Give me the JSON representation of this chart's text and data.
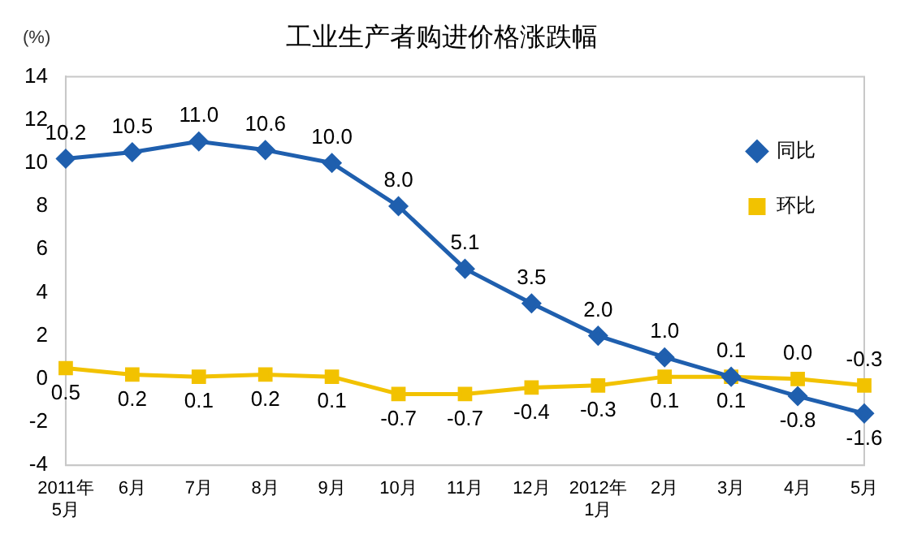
{
  "chart_data": {
    "type": "line",
    "title": "工业生产者购进价格涨跌幅",
    "ylabel": "(%)",
    "categories": [
      "2011年\n5月",
      "6月",
      "7月",
      "8月",
      "9月",
      "10月",
      "11月",
      "12月",
      "2012年\n1月",
      "2月",
      "3月",
      "4月",
      "5月"
    ],
    "series": [
      {
        "name": "同比",
        "color": "#1f5fae",
        "marker": "diamond",
        "values": [
          10.2,
          10.5,
          11.0,
          10.6,
          10.0,
          8.0,
          5.1,
          3.5,
          2.0,
          1.0,
          0.1,
          -0.8,
          -1.6
        ],
        "value_labels": [
          "10.2",
          "10.5",
          "11.0",
          "10.6",
          "10.0",
          "8.0",
          "5.1",
          "3.5",
          "2.0",
          "1.0",
          "0.1",
          "-0.8",
          "-1.6"
        ]
      },
      {
        "name": "环比",
        "color": "#f2c200",
        "marker": "square",
        "values": [
          0.5,
          0.2,
          0.1,
          0.2,
          0.1,
          -0.7,
          -0.7,
          -0.4,
          -0.3,
          0.1,
          0.1,
          0.0,
          -0.3
        ],
        "value_labels": [
          "0.5",
          "0.2",
          "0.1",
          "0.2",
          "0.1",
          "-0.7",
          "-0.7",
          "-0.4",
          "-0.3",
          "0.1",
          "0.1",
          "0.0",
          "-0.3"
        ]
      }
    ],
    "ylim": [
      -4,
      14
    ],
    "yticks": [
      -4,
      -2,
      0,
      2,
      4,
      6,
      8,
      10,
      12,
      14
    ],
    "grid": false,
    "legend": "top right",
    "line_style": "solid"
  }
}
